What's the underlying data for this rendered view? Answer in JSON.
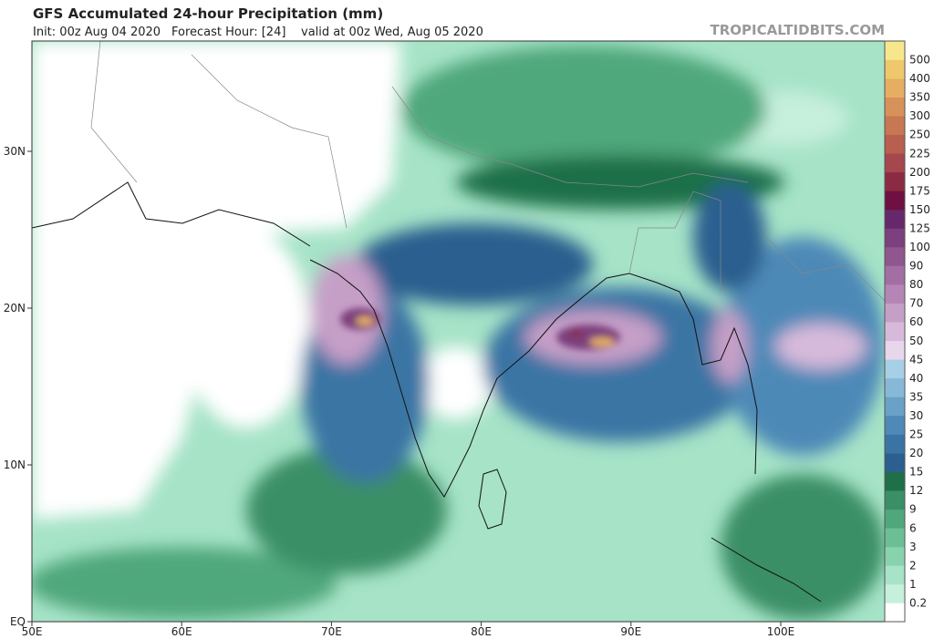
{
  "header": {
    "title": "GFS Accumulated 24-hour Precipitation (mm)",
    "init": "Init: 00z Aug 04 2020",
    "forecast_hour": "Forecast Hour: [24]",
    "valid": "valid at 00z Wed, Aug 05 2020",
    "site": "TROPICALTIDBITS.COM"
  },
  "colorbar": {
    "levels": [
      0.2,
      1,
      2,
      3,
      6,
      9,
      12,
      15,
      20,
      25,
      30,
      35,
      40,
      45,
      50,
      60,
      70,
      80,
      90,
      100,
      125,
      150,
      175,
      200,
      225,
      250,
      300,
      350,
      400,
      500
    ],
    "colors": [
      "#ffffff",
      "#c6efdc",
      "#a6e3c7",
      "#88d2ae",
      "#6cbf95",
      "#4fa77c",
      "#3a8f66",
      "#1f6f48",
      "#2b5f8f",
      "#3a74a4",
      "#4e89b7",
      "#69a1c7",
      "#87b8d7",
      "#a7cfe5",
      "#e8d6ec",
      "#d7badb",
      "#c69fc7",
      "#b585b5",
      "#a36ea2",
      "#8f568f",
      "#7b407d",
      "#66286a",
      "#6e1042",
      "#8b2a42",
      "#a6464e",
      "#b85f50",
      "#c77852",
      "#d7915a",
      "#e6ae62",
      "#f0c86c",
      "#f8e68c"
    ]
  },
  "axes": {
    "lat_labels": [
      "30N",
      "20N",
      "10N",
      "EQ"
    ],
    "lon_labels": [
      "50E",
      "60E",
      "70E",
      "80E",
      "90E",
      "100E"
    ]
  }
}
